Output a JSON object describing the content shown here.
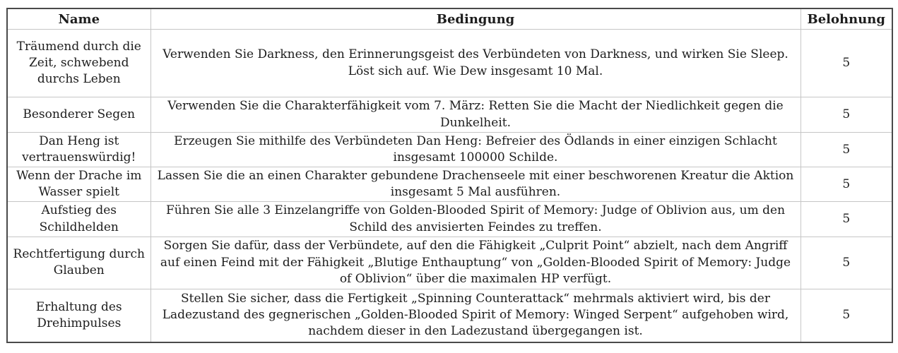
{
  "table": {
    "columns": [
      "Name",
      "Bedingung",
      "Belohnung"
    ],
    "rows": [
      {
        "name": "Träumend durch die Zeit, schwebend durchs Leben",
        "condition": "Verwenden Sie Darkness, den Erinnerungsgeist des Verbündeten von Darkness, und wirken Sie Sleep. Löst sich auf. Wie Dew insgesamt 10 Mal.",
        "reward": "5"
      },
      {
        "name": "Besonderer Segen",
        "condition": "Verwenden Sie die Charakterfähigkeit vom 7. März: Retten Sie die Macht der Niedlichkeit gegen die Dunkelheit.",
        "reward": "5"
      },
      {
        "name": "Dan Heng ist vertrauenswürdig!",
        "condition": "Erzeugen Sie mithilfe des Verbündeten Dan Heng: Befreier des Ödlands in einer einzigen Schlacht insgesamt 100000 Schilde.",
        "reward": "5"
      },
      {
        "name": "Wenn der Drache im Wasser spielt",
        "condition": "Lassen Sie die an einen Charakter gebundene Drachenseele mit einer beschworenen Kreatur die Aktion insgesamt 5 Mal ausführen.",
        "reward": "5"
      },
      {
        "name": "Aufstieg des Schildhelden",
        "condition": "Führen Sie alle 3 Einzelangriffe von Golden-Blooded Spirit of Memory: Judge of Oblivion aus, um den Schild des anvisierten Feindes zu treffen.",
        "reward": "5"
      },
      {
        "name": "Rechtfertigung durch Glauben",
        "condition": "Sorgen Sie dafür, dass der Verbündete, auf den die Fähigkeit „Culprit Point“ abzielt, nach dem Angriff auf einen Feind mit der Fähigkeit „Blutige Enthauptung“ von „Golden-Blooded Spirit of Memory: Judge of Oblivion“ über die maximalen HP verfügt.",
        "reward": "5"
      },
      {
        "name": "Erhaltung des Drehimpulses",
        "condition": "Stellen Sie sicher, dass die Fertigkeit „Spinning Counterattack“ mehrmals aktiviert wird, bis der Ladezustand des gegnerischen „Golden-Blooded Spirit of Memory: Winged Serpent“ aufgehoben wird, nachdem dieser in den Ladezustand übergegangen ist.",
        "reward": "5"
      }
    ],
    "colors": {
      "text": "#1d1d1d",
      "outer_border": "#4a4a4a",
      "inner_border": "#c6c6c6",
      "background": "#ffffff"
    }
  }
}
